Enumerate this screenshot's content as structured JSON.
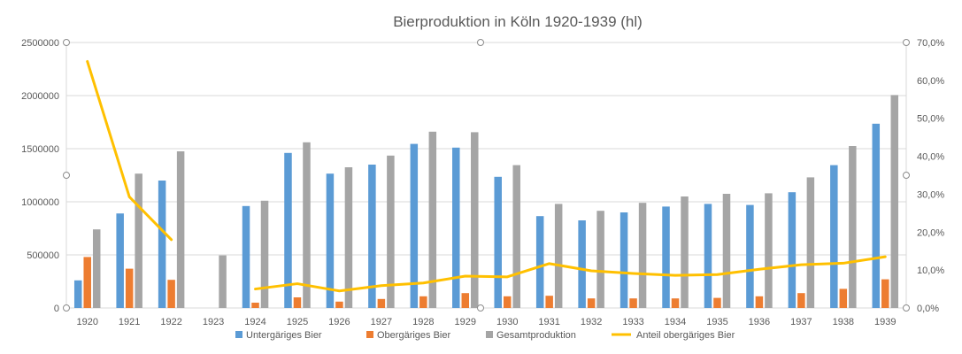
{
  "chart_data": {
    "type": "bar",
    "title": "Bierproduktion in Köln 1920-1939 (hl)",
    "categories": [
      "1920",
      "1921",
      "1922",
      "1923",
      "1924",
      "1925",
      "1926",
      "1927",
      "1928",
      "1929",
      "1930",
      "1931",
      "1932",
      "1933",
      "1934",
      "1935",
      "1936",
      "1937",
      "1938",
      "1939"
    ],
    "series": [
      {
        "name": "Untergäriges Bier",
        "type": "bar",
        "axis": "left",
        "color": "#5B9BD5",
        "values": [
          260000,
          890000,
          1200000,
          null,
          960000,
          1460000,
          1265000,
          1350000,
          1545000,
          1510000,
          1235000,
          865000,
          825000,
          900000,
          955000,
          980000,
          970000,
          1090000,
          1345000,
          1735000
        ]
      },
      {
        "name": "Obergäriges Bier",
        "type": "bar",
        "axis": "left",
        "color": "#ED7D31",
        "values": [
          480000,
          370000,
          265000,
          null,
          50000,
          100000,
          60000,
          85000,
          110000,
          140000,
          110000,
          115000,
          90000,
          90000,
          90000,
          95000,
          110000,
          140000,
          180000,
          270000
        ]
      },
      {
        "name": "Gesamtproduktion",
        "type": "bar",
        "axis": "left",
        "color": "#A5A5A5",
        "values": [
          740000,
          1265000,
          1475000,
          495000,
          1010000,
          1560000,
          1325000,
          1435000,
          1660000,
          1655000,
          1345000,
          980000,
          915000,
          990000,
          1050000,
          1075000,
          1080000,
          1230000,
          1525000,
          2005000
        ]
      },
      {
        "name": "Anteil obergäriges Bier",
        "type": "line",
        "axis": "right",
        "color": "#FFC000",
        "values": [
          0.65,
          0.293,
          0.18,
          null,
          0.05,
          0.064,
          0.045,
          0.059,
          0.066,
          0.084,
          0.082,
          0.117,
          0.098,
          0.091,
          0.086,
          0.088,
          0.102,
          0.114,
          0.118,
          0.135
        ]
      }
    ],
    "y_left": {
      "min": 0,
      "max": 2500000,
      "ticks": [
        "0",
        "500000",
        "1000000",
        "1500000",
        "2000000",
        "2500000"
      ]
    },
    "y_right": {
      "min": 0,
      "max": 0.7,
      "ticks": [
        "0,0%",
        "10,0%",
        "20,0%",
        "30,0%",
        "40,0%",
        "50,0%",
        "60,0%",
        "70,0%"
      ]
    },
    "grid": true,
    "legend_position": "bottom"
  }
}
